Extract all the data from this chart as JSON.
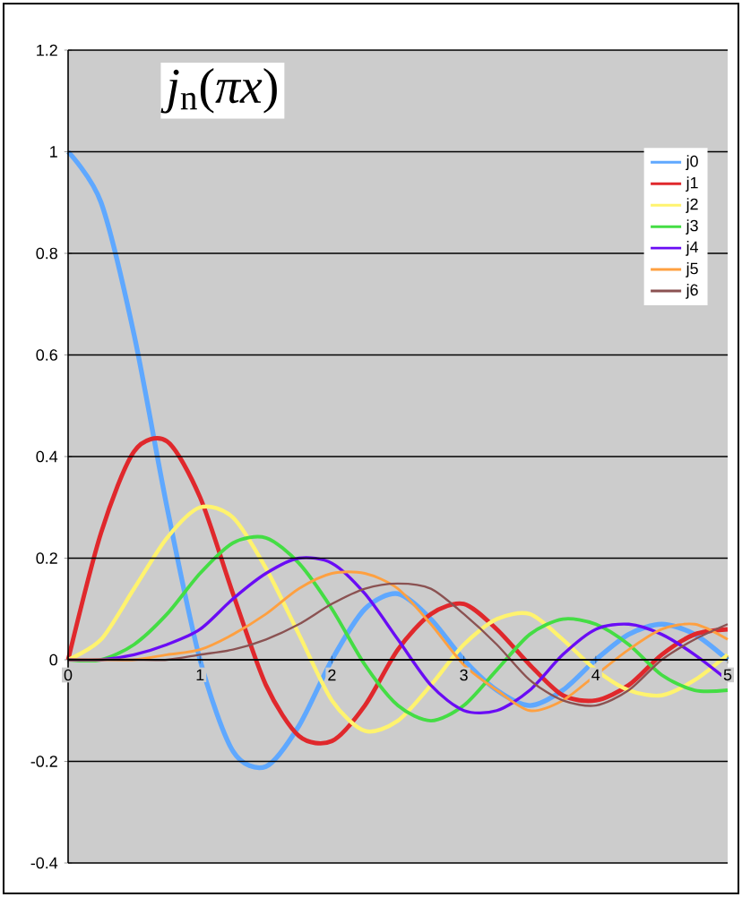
{
  "chart_data": {
    "type": "line",
    "title": "*j*$_{n}$(*πx*)",
    "x": [
      0,
      0.25,
      0.5,
      0.75,
      1,
      1.25,
      1.5,
      1.75,
      2,
      2.25,
      2.5,
      2.75,
      3,
      3.25,
      3.5,
      3.75,
      4,
      4.25,
      4.5,
      4.75,
      5
    ],
    "series": [
      {
        "name": "j0",
        "color": "#5fa8ff",
        "values": [
          1,
          0.9,
          0.64,
          0.3,
          0,
          -0.18,
          -0.21,
          -0.13,
          0,
          0.1,
          0.13,
          0.08,
          0,
          -0.06,
          -0.09,
          -0.06,
          0,
          0.05,
          0.07,
          0.05,
          0
        ]
      },
      {
        "name": "j1",
        "color": "#e0282c",
        "values": [
          0,
          0.25,
          0.41,
          0.43,
          0.32,
          0.13,
          -0.05,
          -0.15,
          -0.16,
          -0.09,
          0.02,
          0.09,
          0.11,
          0.06,
          -0.01,
          -0.07,
          -0.08,
          -0.05,
          0.01,
          0.05,
          0.06
        ]
      },
      {
        "name": "j2",
        "color": "#fff36e",
        "values": [
          0,
          0.04,
          0.14,
          0.24,
          0.3,
          0.28,
          0.18,
          0.05,
          -0.08,
          -0.14,
          -0.12,
          -0.05,
          0.03,
          0.08,
          0.09,
          0.04,
          -0.02,
          -0.06,
          -0.07,
          -0.04,
          0.01
        ]
      },
      {
        "name": "j3",
        "color": "#44dd44",
        "values": [
          0,
          0,
          0.03,
          0.09,
          0.17,
          0.23,
          0.24,
          0.19,
          0.1,
          -0.01,
          -0.09,
          -0.12,
          -0.09,
          -0.02,
          0.05,
          0.08,
          0.07,
          0.03,
          -0.03,
          -0.06,
          -0.06
        ]
      },
      {
        "name": "j4",
        "color": "#6a0cf5",
        "values": [
          0,
          0,
          0.01,
          0.03,
          0.06,
          0.12,
          0.17,
          0.2,
          0.19,
          0.13,
          0.04,
          -0.05,
          -0.1,
          -0.1,
          -0.06,
          0.01,
          0.06,
          0.07,
          0.05,
          0.01,
          -0.04
        ]
      },
      {
        "name": "j5",
        "color": "#ffa040",
        "values": [
          0,
          0,
          0,
          0.01,
          0.02,
          0.05,
          0.09,
          0.14,
          0.17,
          0.17,
          0.14,
          0.07,
          -0.01,
          -0.06,
          -0.1,
          -0.08,
          -0.03,
          0.02,
          0.06,
          0.07,
          0.04
        ]
      },
      {
        "name": "j6",
        "color": "#8b5252",
        "values": [
          0,
          0,
          0,
          0,
          0.01,
          0.02,
          0.04,
          0.07,
          0.11,
          0.14,
          0.15,
          0.14,
          0.09,
          0.03,
          -0.04,
          -0.08,
          -0.09,
          -0.06,
          0,
          0.04,
          0.07
        ]
      }
    ],
    "xlim": [
      0,
      5
    ],
    "xticks": [
      0,
      1,
      2,
      3,
      4,
      5
    ],
    "ylim": [
      -0.4,
      1.2
    ],
    "yticks": [
      -0.4,
      -0.2,
      0,
      0.2,
      0.4,
      0.6,
      0.8,
      1,
      1.2
    ],
    "grid": "y",
    "legend": "top right",
    "marker": "none",
    "line_style": "solid"
  }
}
